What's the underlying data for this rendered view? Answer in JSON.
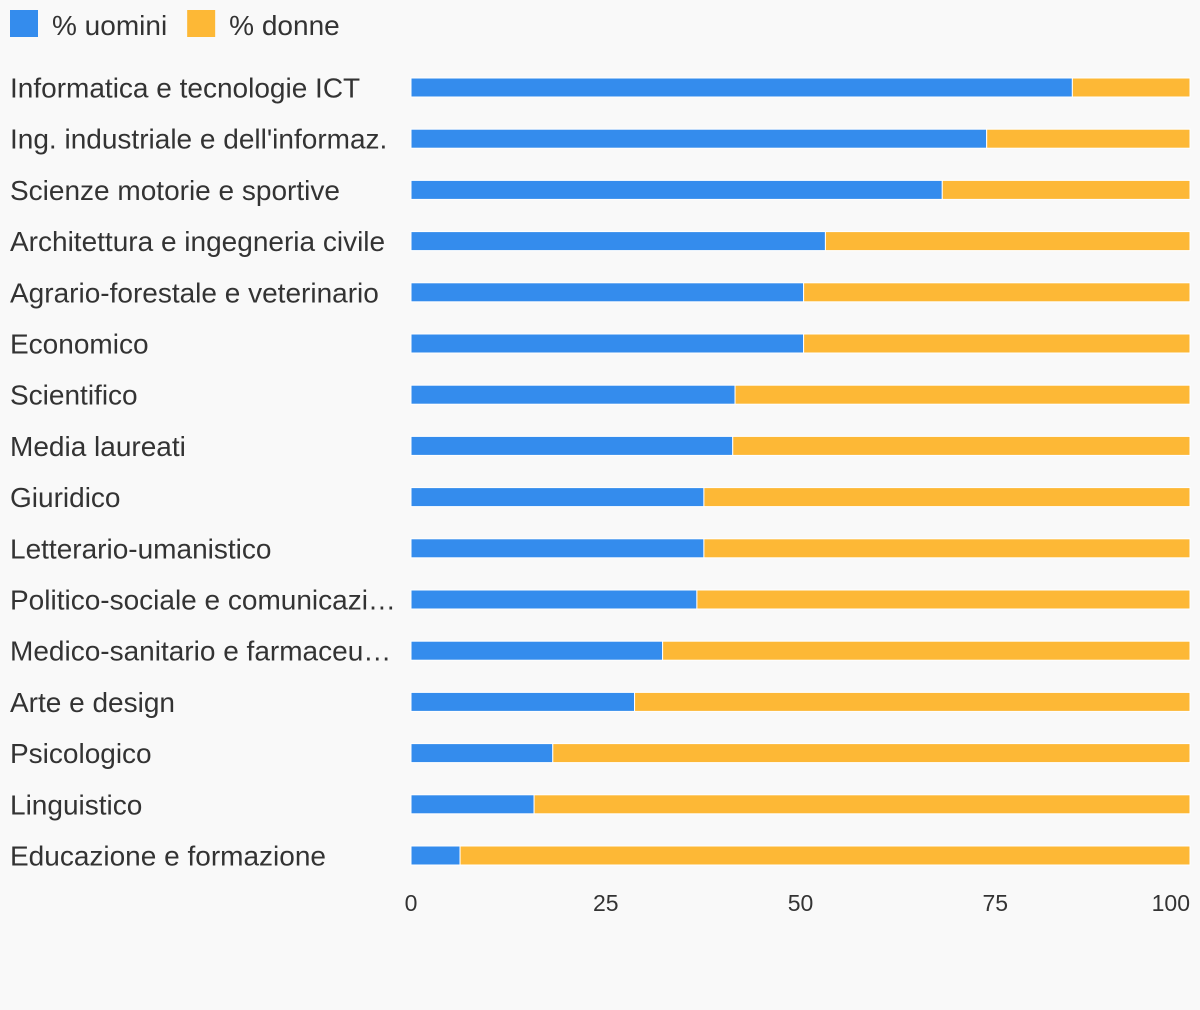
{
  "chart_data": {
    "type": "bar",
    "orientation": "horizontal",
    "stacked": true,
    "categories": [
      "Informatica e tecnologie ICT",
      "Ing. industriale e dell'informaz.",
      "Scienze motorie e sportive",
      "Architettura e ingegneria civile",
      "Agrario-forestale e veterinario",
      "Economico",
      "Scientifico",
      "Media laureati",
      "Giuridico",
      "Letterario-umanistico",
      "Politico-sociale e comunicazi…",
      "Medico-sanitario e farmaceu…",
      "Arte e design",
      "Psicologico",
      "Linguistico",
      "Educazione e formazione"
    ],
    "series": [
      {
        "name": "% uomini",
        "color": "#348ced",
        "values": [
          84.9,
          73.9,
          68.2,
          53.2,
          50.4,
          50.4,
          41.6,
          41.3,
          37.6,
          37.6,
          36.7,
          32.3,
          28.7,
          18.2,
          15.8,
          6.3
        ]
      },
      {
        "name": "% donne",
        "color": "#fdb836",
        "values": [
          15.1,
          26.1,
          31.8,
          46.8,
          49.6,
          49.6,
          58.4,
          58.7,
          62.4,
          62.4,
          63.3,
          67.7,
          71.3,
          81.8,
          84.2,
          93.7
        ]
      }
    ],
    "x_ticks": [
      "0",
      "25",
      "50",
      "75",
      "100"
    ],
    "xlim": [
      0,
      100
    ],
    "grid": false,
    "legend_position": "top-left",
    "title": "",
    "xlabel": "",
    "ylabel": ""
  }
}
